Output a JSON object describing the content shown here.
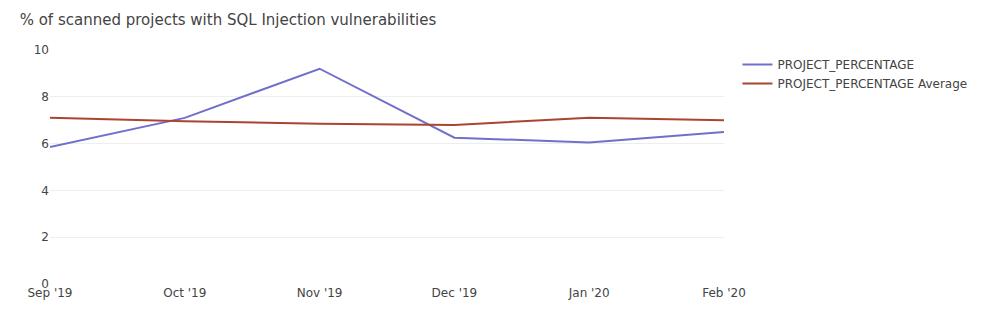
{
  "chart_data": {
    "type": "line",
    "title": "% of scanned projects with SQL Injection vulnerabilities",
    "categories": [
      "Sep '19",
      "Oct '19",
      "Nov '19",
      "Dec '19",
      "Jan '20",
      "Feb '20"
    ],
    "series": [
      {
        "name": "PROJECT_PERCENTAGE",
        "color": "#7070cc",
        "values": [
          5.85,
          7.1,
          9.2,
          6.25,
          6.05,
          6.5
        ]
      },
      {
        "name": "PROJECT_PERCENTAGE Average",
        "color": "#aa4433",
        "values": [
          7.1,
          6.95,
          6.85,
          6.8,
          7.1,
          7.0
        ]
      }
    ],
    "ylim": [
      0,
      10
    ],
    "yticks": [
      0,
      2,
      4,
      6,
      8,
      10
    ],
    "grid": true,
    "legend": "right"
  }
}
